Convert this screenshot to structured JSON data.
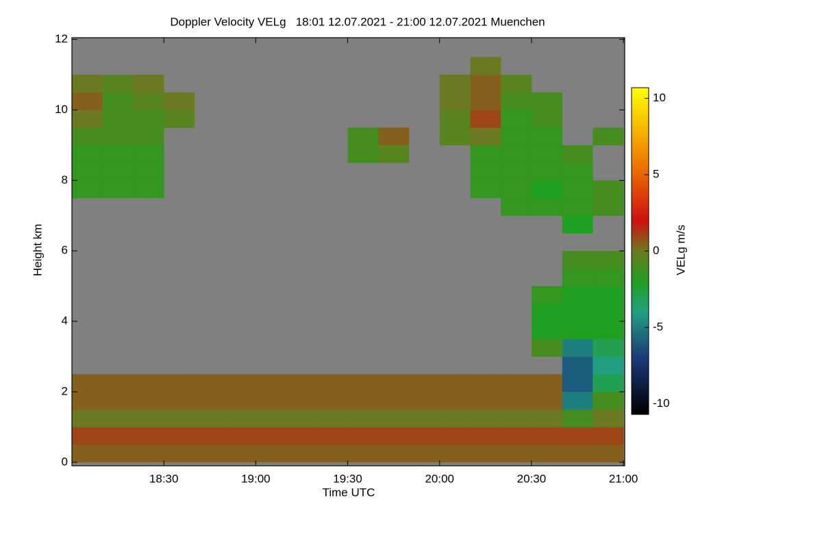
{
  "chart_data": {
    "type": "heatmap",
    "title": "Doppler Velocity VELg   18:01 12.07.2021 - 21:00 12.07.2021 Muenchen",
    "xlabel": "Time UTC",
    "ylabel": "Height km",
    "x": [
      18,
      18.167,
      18.333,
      18.5,
      18.667,
      18.833,
      19,
      19.167,
      19.333,
      19.5,
      19.667,
      19.833,
      20,
      20.167,
      20.333,
      20.5,
      20.667,
      20.833,
      21
    ],
    "y": [
      0,
      0.5,
      1,
      1.5,
      2,
      2.5,
      3,
      3.5,
      4,
      4.5,
      5,
      5.5,
      6,
      6.5,
      7,
      7.5,
      8,
      8.5,
      9,
      9.5,
      10,
      10.5,
      11,
      11.5,
      12
    ],
    "z": [
      [
        0.5,
        0.5,
        0.5,
        0.5,
        0.5,
        0.5,
        0.5,
        0.5,
        0.5,
        0.5,
        0.5,
        0.5,
        0.5,
        0.5,
        0.5,
        0.5,
        0.5,
        0.5
      ],
      [
        1,
        1,
        1,
        1,
        1,
        1,
        1,
        1,
        1,
        1,
        1,
        1,
        1,
        1,
        1,
        1,
        1,
        1
      ],
      [
        0,
        0,
        0,
        0,
        0,
        0,
        0,
        0,
        0,
        0,
        0,
        0,
        0,
        0,
        0,
        0,
        -1,
        0
      ],
      [
        0.5,
        0.5,
        0.5,
        0.5,
        0.5,
        0.5,
        0.5,
        0.5,
        0.5,
        0.5,
        0.5,
        0.5,
        0.5,
        0.5,
        0.5,
        0.5,
        -5,
        -1
      ],
      [
        0.5,
        0.5,
        0.5,
        0.5,
        0.5,
        0.5,
        0.5,
        0.5,
        0.5,
        0.5,
        0.5,
        0.5,
        0.5,
        0.5,
        0.5,
        0.5,
        -6,
        -3
      ],
      [
        null,
        null,
        null,
        null,
        null,
        null,
        null,
        null,
        null,
        null,
        null,
        null,
        null,
        null,
        null,
        null,
        -6,
        -4
      ],
      [
        null,
        null,
        null,
        null,
        null,
        null,
        null,
        null,
        null,
        null,
        null,
        null,
        null,
        null,
        null,
        -1,
        -5,
        -3
      ],
      [
        null,
        null,
        null,
        null,
        null,
        null,
        null,
        null,
        null,
        null,
        null,
        null,
        null,
        null,
        null,
        -2,
        -2,
        -2
      ],
      [
        null,
        null,
        null,
        null,
        null,
        null,
        null,
        null,
        null,
        null,
        null,
        null,
        null,
        null,
        null,
        -2,
        -2,
        -2
      ],
      [
        null,
        null,
        null,
        null,
        null,
        null,
        null,
        null,
        null,
        null,
        null,
        null,
        null,
        null,
        null,
        -1.5,
        -2,
        -2
      ],
      [
        null,
        null,
        null,
        null,
        null,
        null,
        null,
        null,
        null,
        null,
        null,
        null,
        null,
        null,
        null,
        null,
        -1.5,
        -1.5
      ],
      [
        null,
        null,
        null,
        null,
        null,
        null,
        null,
        null,
        null,
        null,
        null,
        null,
        null,
        null,
        null,
        null,
        -1,
        -1
      ],
      [
        null,
        null,
        null,
        null,
        null,
        null,
        null,
        null,
        null,
        null,
        null,
        null,
        null,
        null,
        null,
        null,
        null,
        null
      ],
      [
        null,
        null,
        null,
        null,
        null,
        null,
        null,
        null,
        null,
        null,
        null,
        null,
        null,
        null,
        null,
        null,
        -2,
        null
      ],
      [
        null,
        null,
        null,
        null,
        null,
        null,
        null,
        null,
        null,
        null,
        null,
        null,
        null,
        null,
        -1.5,
        -1.5,
        -1.5,
        -1
      ],
      [
        -1.5,
        -1.5,
        -1.5,
        null,
        null,
        null,
        null,
        null,
        null,
        null,
        null,
        null,
        null,
        -1.5,
        -1.5,
        -2,
        -1.5,
        -1
      ],
      [
        -1.5,
        -1.5,
        -1.5,
        null,
        null,
        null,
        null,
        null,
        null,
        null,
        null,
        null,
        null,
        -1.5,
        -1.5,
        -1.5,
        -1.5,
        null
      ],
      [
        -1.5,
        -1.5,
        -1.5,
        null,
        null,
        null,
        null,
        null,
        null,
        -1,
        -0.5,
        null,
        null,
        -1.5,
        -1.5,
        -1.5,
        -1,
        null
      ],
      [
        -1,
        -1,
        -1,
        null,
        null,
        null,
        null,
        null,
        null,
        -1,
        0.5,
        null,
        -0.5,
        0,
        -1.5,
        -1.5,
        null,
        -1
      ],
      [
        0,
        -1,
        -1,
        -0.5,
        null,
        null,
        null,
        null,
        null,
        null,
        null,
        null,
        -0.5,
        1,
        -1.5,
        -1,
        null,
        null
      ],
      [
        0.5,
        -1,
        -0.5,
        0,
        null,
        null,
        null,
        null,
        null,
        null,
        null,
        null,
        0,
        0.5,
        -1,
        -1,
        null,
        null
      ],
      [
        0,
        -0.5,
        0,
        null,
        null,
        null,
        null,
        null,
        null,
        null,
        null,
        null,
        0,
        0.5,
        -0.5,
        null,
        null,
        null
      ],
      [
        null,
        null,
        null,
        null,
        null,
        null,
        null,
        null,
        null,
        null,
        null,
        null,
        null,
        0,
        null,
        null,
        null,
        null
      ],
      [
        null,
        null,
        null,
        null,
        null,
        null,
        null,
        null,
        null,
        null,
        null,
        null,
        null,
        null,
        null,
        null,
        null,
        null
      ]
    ],
    "xlim": [
      18,
      21.007
    ],
    "xticks": [
      {
        "value": 18.5,
        "label": "18:30"
      },
      {
        "value": 19,
        "label": "19:00"
      },
      {
        "value": 19.5,
        "label": "19:30"
      },
      {
        "value": 20,
        "label": "20:00"
      },
      {
        "value": 20.5,
        "label": "20:30"
      },
      {
        "value": 21,
        "label": "21:00"
      }
    ],
    "ylim": [
      -0.1,
      12.05
    ],
    "yticks": [
      0,
      2,
      4,
      6,
      8,
      10,
      12
    ],
    "colorscale": [
      [
        -11,
        "#000000"
      ],
      [
        -7,
        "#1a3a7a"
      ],
      [
        -4,
        "#20a080"
      ],
      [
        -2,
        "#20a020"
      ],
      [
        0,
        "#6b7a20"
      ],
      [
        2,
        "#d01010"
      ],
      [
        6,
        "#f08000"
      ],
      [
        11,
        "#ffff00"
      ]
    ],
    "colorbar": {
      "label": "VELg m/s",
      "lim": [
        -10.7,
        10.7
      ],
      "ticks": [
        -10,
        -5,
        0,
        5,
        10
      ]
    }
  }
}
